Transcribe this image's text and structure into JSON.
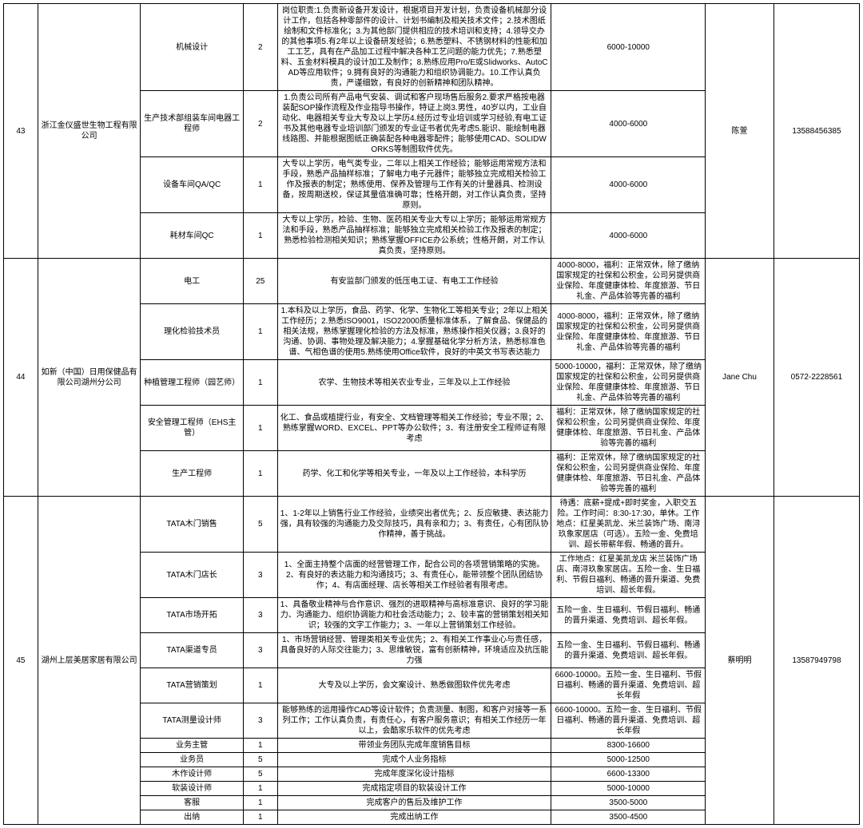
{
  "companies": [
    {
      "idx": "43",
      "name": "浙江金仪盛世生物工程有限公司",
      "contact": "陈萱",
      "phone": "13588456385",
      "rows": [
        {
          "pos": "机械设计",
          "num": "2",
          "desc": "岗位职责:1.负责新设备开发设计，根据项目开发计划，负责设备机械部分设计工作，包括各种零部件的设计、计划书编制及相关技术文件；2.技术图纸绘制和文件标准化；3.为其他部门提供相应的技术培训和支持；4.领导交办的其他事项5.有2年以上设备研发经验；6.熟悉塑料、不锈钢材料的性能和加工工艺，具有在产品加工过程中解决各种工艺问题的能力优先；7.熟悉塑料、五金材料模具的设计加工及制作；8.熟练应用Pro/E或Slidworks、AutoCAD等应用软件；9.拥有良好的沟通能力和组织协调能力。10.工作认真负责，严谨细致，有良好的创新精神和团队精神。",
          "sal": "6000-10000"
        },
        {
          "pos": "生产技术部组装车间电器工程师",
          "num": "2",
          "desc": "1.负责公司所有产品电气安装、调试和客户现场售后服务2.要求严格按电器装配SOP操作流程及作业指导书操作，特证上岗3.男性，40岁以内，工业自动化、电器相关专业大专及以上学历4.经历过专业培训或学习经验,有电工证书及其他电器专业培训部门颁发的专业证书者优先考虑5.能识、能绘制电器线路图、并能根据图纸正确装配各种电器零配件；能够使用CAD、SOLIDWORKS等制图软件优先。",
          "sal": "4000-6000"
        },
        {
          "pos": "设备车间QA/QC",
          "num": "1",
          "desc": "大专以上学历，电气类专业，二年以上相关工作经验；能够运用常规方法和手段，熟悉产品抽样标准；了解电力电子元器件；能够独立完成相关检验工作及报表的制定；熟练使用、保养及管理与工作有关的计量器具、检测设备，按周期送校，保证其量值准确可靠；性格开朗，对工作认真负责，坚持原则。",
          "sal": "4000-6000"
        },
        {
          "pos": "耗材车间QC",
          "num": "1",
          "desc": "大专以上学历，检验、生物、医药相关专业大专以上学历；能够运用常规方法和手段，熟悉产品抽样标准；能够独立完成相关检验工作及报表的制定；熟悉检验检测相关知识；熟练掌握OFFICE办公系统；性格开朗，对工作认真负责，坚持原则。",
          "sal": "4000-6000"
        }
      ]
    },
    {
      "idx": "44",
      "name": "如新（中国）日用保健品有限公司湖州分公司",
      "contact": "Jane Chu",
      "phone": "0572-2228561",
      "rows": [
        {
          "pos": "电工",
          "num": "25",
          "desc": "有安监部门颁发的低压电工证、有电工工作经验",
          "sal": "4000-8000，福利：正常双休，除了缴纳国家规定的社保和公积金，公司另提供商业保险、年度健康体检、年度旅游、节日礼金、产品体验等完善的福利"
        },
        {
          "pos": "理化检验技术员",
          "num": "1",
          "desc": "1.本科及以上学历，食品、药学、化学、生物化工等相关专业；2年以上相关工作经历；2.熟悉ISO9001，ISO22000质量标准体系，了解食品、保健品的相关法规，熟练掌握理化检验的方法及标准，熟练操作相关仪器；3.良好的沟通、协调、事物处理及解决能力；4.掌握基础化学分析方法，熟悉标准色谱、气相色谱的使用5.熟练使用Office软件，良好的中英文书写表达能力",
          "sal": "4000-8000，福利：正常双休，除了缴纳国家规定的社保和公积金，公司另提供商业保险、年度健康体检、年度旅游、节日礼金、产品体验等完善的福利"
        },
        {
          "pos": "种植管理工程师（园艺师）",
          "num": "1",
          "desc": "农学、生物技术等相关农业专业，三年及以上工作经验",
          "sal": "5000-10000，福利：正常双休，除了缴纳国家规定的社保和公积金，公司另提供商业保险、年度健康体检、年度旅游、节日礼金、产品体验等完善的福利"
        },
        {
          "pos": "安全管理工程师（EHS主管）",
          "num": "1",
          "desc": "化工、食品或植提行业，有安全、文档管理等相关工作经验；专业不限；2、熟练掌握WORD、EXCEL、PPT等办公软件；3．有注册安全工程师证有限考虑",
          "sal": "福利：正常双休，除了缴纳国家规定的社保和公积金，公司另提供商业保险、年度健康体检、年度旅游、节日礼金、产品体验等完善的福利"
        },
        {
          "pos": "生产工程师",
          "num": "1",
          "desc": "药学、化工和化学等相关专业，一年及以上工作经验，本科学历",
          "sal": "福利：正常双休，除了缴纳国家规定的社保和公积金，公司另提供商业保险、年度健康体检、年度旅游、节日礼金、产品体验等完善的福利"
        }
      ]
    },
    {
      "idx": "45",
      "name": "湖州上层美居家居有限公司",
      "contact": "蔡明明",
      "phone": "13587949798",
      "rows": [
        {
          "pos": "TATA木门销售",
          "num": "5",
          "desc": "1、1-2年以上销售行业工作经验，业绩突出者优先；2、反应敏捷、表达能力强，具有较强的沟通能力及交际技巧，具有亲和力；3、有责任，心有团队协作精神，善于挑战。",
          "sal": "待遇：底薪+提成+即时奖金，入职交五险。工作时间：8:30-17:30，单休。工作地点：红星美凯龙、米兰装饰广场、南浔玖象家居店（可选）。五险一金、免费培训、超长带薪年假、畅通的晋升。"
        },
        {
          "pos": "TATA木门店长",
          "num": "3",
          "desc": "1、全面主持整个店面的经营管理工作，配合公司的各项营销策略的实施。2、有良好的表达能力和沟通技巧；3、有责任心，能带领整个团队团结协作；4、有店面经理、店长等相关工作经验者有限考虑。",
          "sal": "工作地点：红星美凯龙店 米兰装饰广场店、南浔玖象家居店。五险一金、生日福利、节假日福利、畅通的晋升渠道、免费培训、超长年假。"
        },
        {
          "pos": "TATA市场开拓",
          "num": "3",
          "desc": "1、具备敬业精神与合作意识、强烈的进取精神与高标准意识、良好的学习能力、沟通能力、组织协调能力和社会活动能力；2、较丰富的营销策划相关知识；较强的文字工作能力；3、一年以上营销策划工作经验。",
          "sal": "五险一金、生日福利、节假日福利、畅通的晋升渠道、免费培训、超长年假。"
        },
        {
          "pos": "TATA渠道专员",
          "num": "3",
          "desc": "1、市场营销经营、管理类相关专业优先；2、有相关工作事业心与责任感，具备良好的人际交往能力；3、思维敏锐，富有创新精神，环境适应及抗压能力强",
          "sal": "五险一金、生日福利、节假日福利、畅通的晋升渠道、免费培训、超长年假。"
        },
        {
          "pos": "TATA营销策划",
          "num": "1",
          "desc": "大专及以上学历，会文案设计、熟悉做图软件优先考虑",
          "sal": "6600-10000。五险一金、生日福利、节假日福利、畅通的晋升渠道、免费培训、超长年假"
        },
        {
          "pos": "TATA测量设计师",
          "num": "3",
          "desc": "能够熟练的运用操作CAD等设计软件；负责测量、制图，和客户对接等一系列工作；工作认真负责，有责任心，有客户服务意识；有相关工作经历一年以上，会酷家乐软件的优先考虑",
          "sal": "6600-10000。五险一金、生日福利、节假日福利、畅通的晋升渠道、免费培训、超长年假"
        },
        {
          "pos": "业务主管",
          "num": "1",
          "desc": "带领业务团队完成年度销售目标",
          "sal": "8300-16600"
        },
        {
          "pos": "业务员",
          "num": "5",
          "desc": "完成个人业务指标",
          "sal": "5000-12500"
        },
        {
          "pos": "木作设计师",
          "num": "5",
          "desc": "完成年度深化设计指标",
          "sal": "6600-13300"
        },
        {
          "pos": "软装设计师",
          "num": "1",
          "desc": "完成指定项目的软装设计工作",
          "sal": "5000-10000"
        },
        {
          "pos": "客服",
          "num": "1",
          "desc": "完成客户的售后及维护工作",
          "sal": "3500-5000"
        },
        {
          "pos": "出纳",
          "num": "1",
          "desc": "完成出纳工作",
          "sal": "3500-4500"
        }
      ]
    }
  ]
}
